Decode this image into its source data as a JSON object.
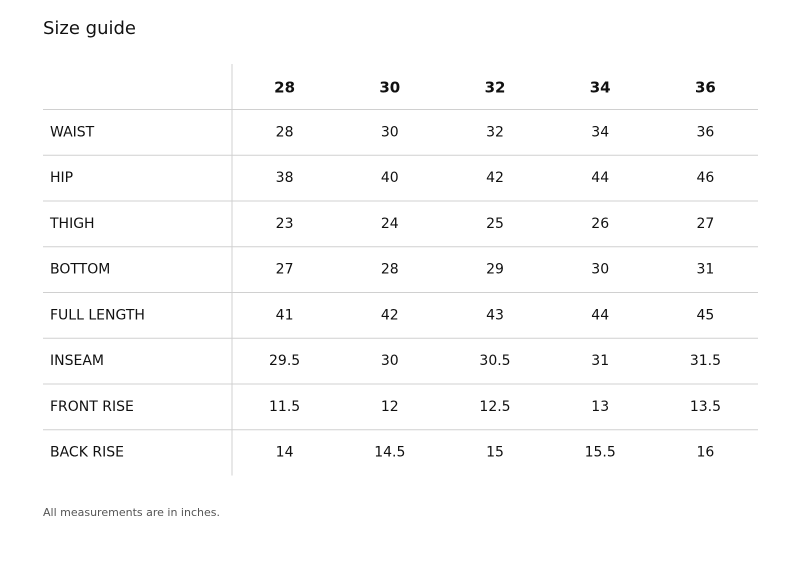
{
  "title": "Size guide",
  "table": {
    "header": [
      28,
      30,
      32,
      34,
      36
    ],
    "rows": [
      {
        "label": "WAIST",
        "values": [
          28,
          30,
          32,
          34,
          36
        ]
      },
      {
        "label": "HIP",
        "values": [
          38,
          40,
          42,
          44,
          46
        ]
      },
      {
        "label": "THIGH",
        "values": [
          23,
          24,
          25,
          26,
          27
        ]
      },
      {
        "label": "BOTTOM",
        "values": [
          27,
          28,
          29,
          30,
          31
        ]
      },
      {
        "label": "FULL LENGTH",
        "values": [
          41,
          42,
          43,
          44,
          45
        ]
      },
      {
        "label": "INSEAM",
        "values": [
          29.5,
          30,
          30.5,
          31,
          31.5
        ]
      },
      {
        "label": "FRONT RISE",
        "values": [
          11.5,
          12,
          12.5,
          13,
          13.5
        ]
      },
      {
        "label": "BACK RISE",
        "values": [
          14,
          14.5,
          15,
          15.5,
          16
        ]
      }
    ]
  },
  "note": "All measurements are in inches."
}
